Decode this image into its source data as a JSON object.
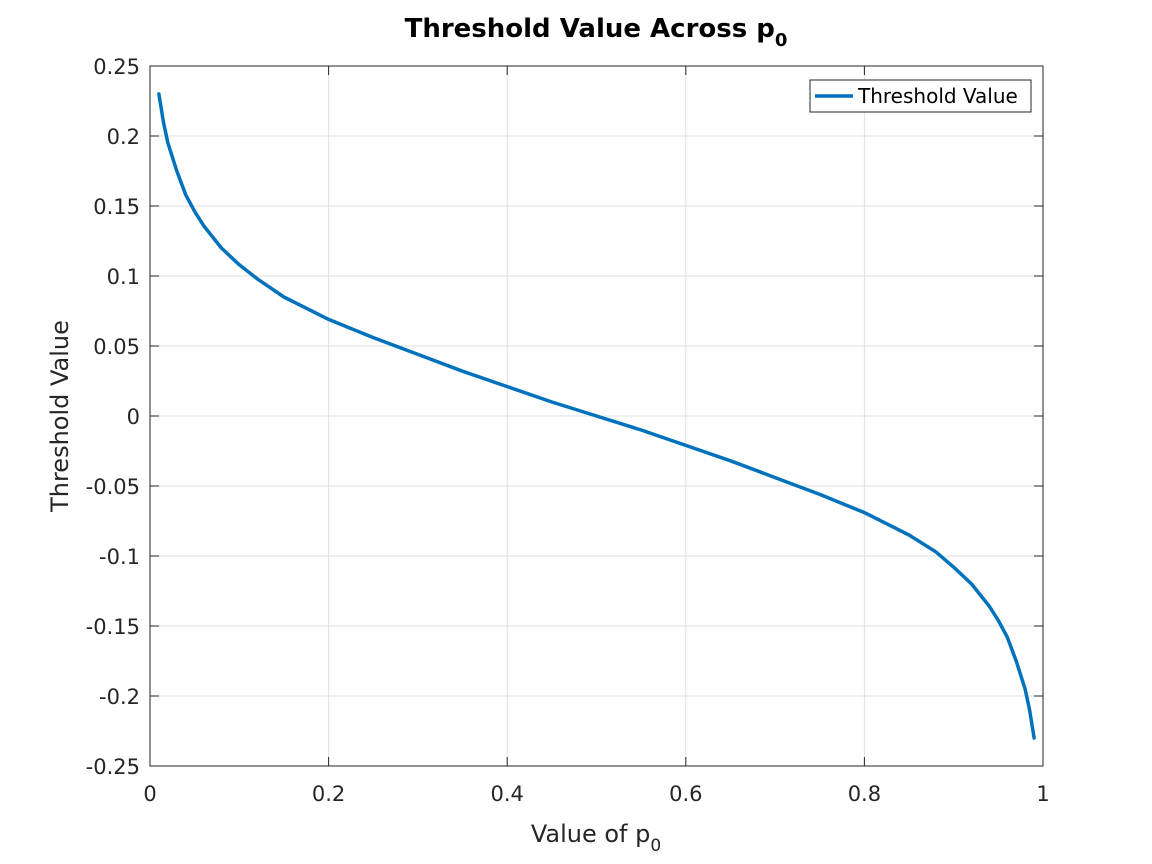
{
  "colors": {
    "line": "#0072BD",
    "grid": "#dfdfdf",
    "axis": "#262626",
    "background": "#ffffff"
  },
  "chart_data": {
    "type": "line",
    "title": "Threshold Value Across p",
    "title_subscript": "0",
    "xlabel": "Value of p",
    "xlabel_subscript": "0",
    "ylabel": "Threshold Value",
    "xlim": [
      0,
      1
    ],
    "ylim": [
      -0.25,
      0.25
    ],
    "xticks": [
      0,
      0.2,
      0.4,
      0.6,
      0.8,
      1
    ],
    "xtick_labels": [
      "0",
      "0.2",
      "0.4",
      "0.6",
      "0.8",
      "1"
    ],
    "yticks": [
      -0.25,
      -0.2,
      -0.15,
      -0.1,
      -0.05,
      0,
      0.05,
      0.1,
      0.15,
      0.2,
      0.25
    ],
    "ytick_labels": [
      "-0.25",
      "-0.2",
      "-0.15",
      "-0.1",
      "-0.05",
      "0",
      "0.05",
      "0.1",
      "0.15",
      "0.2",
      "0.25"
    ],
    "grid": true,
    "legend_position": "top-right",
    "series": [
      {
        "name": "Threshold Value",
        "x": [
          0.01,
          0.015,
          0.02,
          0.03,
          0.04,
          0.05,
          0.06,
          0.08,
          0.1,
          0.12,
          0.15,
          0.2,
          0.25,
          0.3,
          0.35,
          0.4,
          0.45,
          0.5,
          0.55,
          0.6,
          0.65,
          0.7,
          0.75,
          0.8,
          0.85,
          0.88,
          0.9,
          0.92,
          0.94,
          0.95,
          0.96,
          0.97,
          0.98,
          0.985,
          0.99
        ],
        "y": [
          0.23,
          0.21,
          0.195,
          0.175,
          0.158,
          0.146,
          0.136,
          0.12,
          0.108,
          0.098,
          0.085,
          0.069,
          0.056,
          0.044,
          0.032,
          0.021,
          0.01,
          0.0,
          -0.01,
          -0.021,
          -0.032,
          -0.044,
          -0.056,
          -0.069,
          -0.085,
          -0.097,
          -0.108,
          -0.12,
          -0.136,
          -0.146,
          -0.158,
          -0.175,
          -0.195,
          -0.21,
          -0.23
        ]
      }
    ]
  }
}
